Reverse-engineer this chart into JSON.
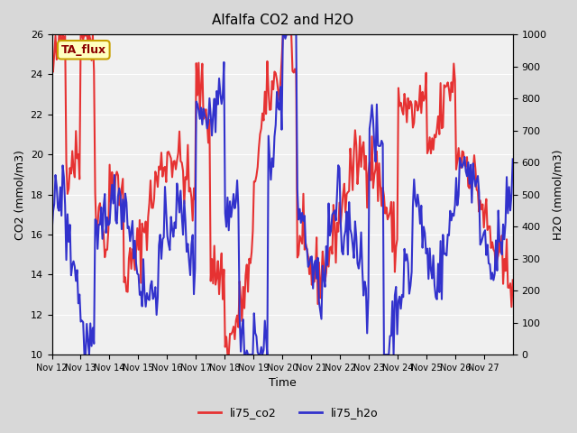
{
  "title": "Alfalfa CO2 and H2O",
  "xlabel": "Time",
  "ylabel_left": "CO2 (mmol/m3)",
  "ylabel_right": "H2O (mmol/m3)",
  "annotation": "TA_flux",
  "ylim_left": [
    10,
    26
  ],
  "ylim_right": [
    0,
    1000
  ],
  "yticks_left": [
    10,
    12,
    14,
    16,
    18,
    20,
    22,
    24,
    26
  ],
  "yticks_right": [
    0,
    100,
    200,
    300,
    400,
    500,
    600,
    700,
    800,
    900,
    1000
  ],
  "co2_color": "#e63232",
  "h2o_color": "#3232cc",
  "bg_color": "#e8e8e8",
  "plot_bg_color": "#f0f0f0",
  "xtick_labels": [
    "Nov 12",
    "Nov 13",
    "Nov 14",
    "Nov 15",
    "Nov 16",
    "Nov 17",
    "Nov 18",
    "Nov 19",
    "Nov 20",
    "Nov 21",
    "Nov 22",
    "Nov 23",
    "Nov 24",
    "Nov 25",
    "Nov 26",
    "Nov 27"
  ],
  "legend_co2": "li75_co2",
  "legend_h2o": "li75_h2o",
  "linewidth": 1.5
}
